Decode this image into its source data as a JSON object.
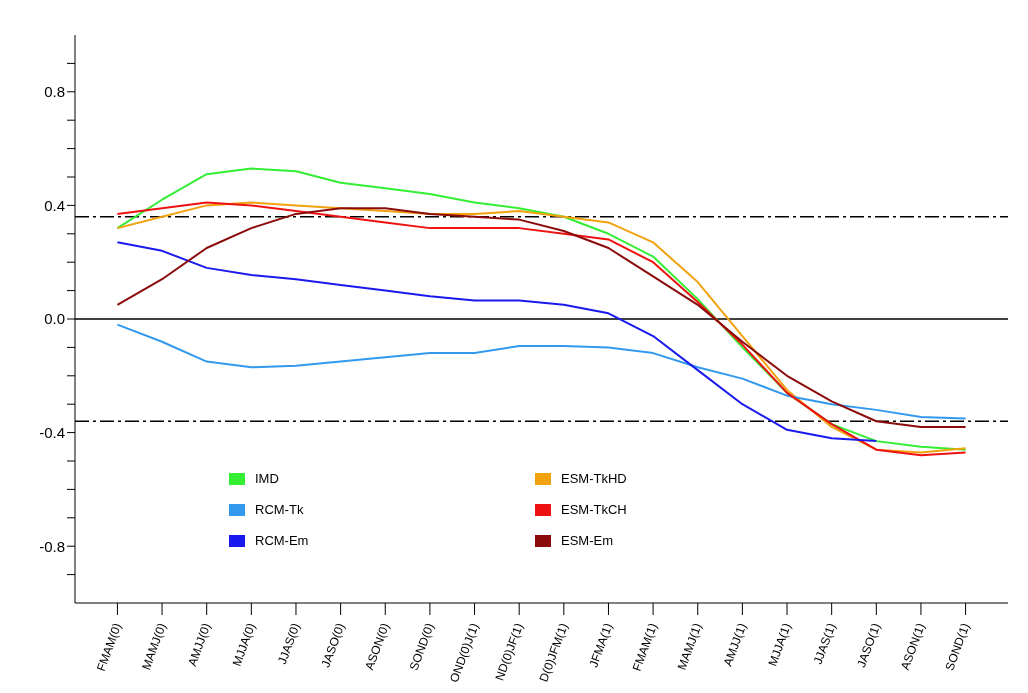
{
  "chart_data": {
    "type": "line",
    "categories": [
      "FMAM(0)",
      "MAMJ(0)",
      "AMJJ(0)",
      "MJJA(0)",
      "JJAS(0)",
      "JASO(0)",
      "ASON(0)",
      "SOND(0)",
      "OND(0)J(1)",
      "ND(0)JF(1)",
      "D(0)JFM(1)",
      "JFMA(1)",
      "FMAM(1)",
      "MAMJ(1)",
      "AMJJ(1)",
      "MJJA(1)",
      "JJAS(1)",
      "JASO(1)",
      "ASON(1)",
      "SOND(1)"
    ],
    "series": [
      {
        "name": "IMD",
        "color": "#33ee33",
        "values": [
          0.32,
          0.42,
          0.51,
          0.53,
          0.52,
          0.48,
          0.46,
          0.44,
          0.41,
          0.39,
          0.36,
          0.3,
          0.22,
          0.07,
          -0.1,
          -0.26,
          -0.37,
          -0.43,
          -0.45,
          -0.46
        ]
      },
      {
        "name": "ESM-TkHD",
        "color": "#f2a10f",
        "values": [
          0.32,
          0.36,
          0.4,
          0.41,
          0.4,
          0.39,
          0.38,
          0.37,
          0.37,
          0.38,
          0.36,
          0.34,
          0.27,
          0.13,
          -0.06,
          -0.25,
          -0.38,
          -0.46,
          -0.47,
          -0.455
        ]
      },
      {
        "name": "RCM-Tk",
        "color": "#3399ee",
        "values": [
          -0.02,
          -0.08,
          -0.15,
          -0.17,
          -0.165,
          -0.15,
          -0.135,
          -0.12,
          -0.12,
          -0.095,
          -0.095,
          -0.1,
          -0.12,
          -0.17,
          -0.21,
          -0.27,
          -0.3,
          -0.32,
          -0.345,
          -0.35
        ]
      },
      {
        "name": "ESM-TkCH",
        "color": "#ee1111",
        "values": [
          0.37,
          0.39,
          0.41,
          0.4,
          0.38,
          0.36,
          0.34,
          0.32,
          0.32,
          0.32,
          0.3,
          0.28,
          0.2,
          0.06,
          -0.09,
          -0.26,
          -0.37,
          -0.46,
          -0.48,
          -0.47
        ]
      },
      {
        "name": "RCM-Em",
        "color": "#1a1aee",
        "values": [
          0.27,
          0.24,
          0.18,
          0.155,
          0.14,
          0.12,
          0.1,
          0.08,
          0.065,
          0.065,
          0.05,
          0.02,
          -0.06,
          -0.18,
          -0.3,
          -0.39,
          -0.42,
          -0.43,
          null,
          null
        ]
      },
      {
        "name": "ESM-Em",
        "color": "#8b0a0a",
        "values": [
          0.05,
          0.14,
          0.25,
          0.32,
          0.37,
          0.39,
          0.39,
          0.37,
          0.36,
          0.35,
          0.31,
          0.25,
          0.15,
          0.05,
          -0.08,
          -0.2,
          -0.29,
          -0.36,
          -0.38,
          -0.38
        ]
      }
    ],
    "ylim": [
      -1,
      1
    ],
    "yticks": [
      {
        "value": -0.9,
        "label": null
      },
      -0.8,
      {
        "value": -0.7,
        "label": null
      },
      {
        "value": -0.6,
        "label": null
      },
      {
        "value": -0.5,
        "label": null
      },
      -0.4,
      {
        "value": -0.3,
        "label": null
      },
      {
        "value": -0.2,
        "label": null
      },
      {
        "value": -0.1,
        "label": null
      },
      {
        "value": 0,
        "label": "0.0"
      },
      {
        "value": 0.1,
        "label": null
      },
      {
        "value": 0.2,
        "label": null
      },
      {
        "value": 0.3,
        "label": null
      },
      0.4,
      {
        "value": 0.5,
        "label": null
      },
      {
        "value": 0.6,
        "label": null
      },
      {
        "value": 0.7,
        "label": null
      },
      0.8,
      {
        "value": 0.9,
        "label": null
      }
    ],
    "ref_lines": [
      {
        "axis": "y",
        "value": 0.36,
        "line_style": "dashed",
        "color": "#000000"
      },
      {
        "axis": "y",
        "value": -0.36,
        "line_style": "dashed",
        "color": "#000000"
      },
      {
        "axis": "y",
        "value": 0,
        "line_style": "solid",
        "color": "#000000"
      }
    ],
    "grid": false,
    "legend": "bottom",
    "marker": "none",
    "line_style": "solid"
  }
}
